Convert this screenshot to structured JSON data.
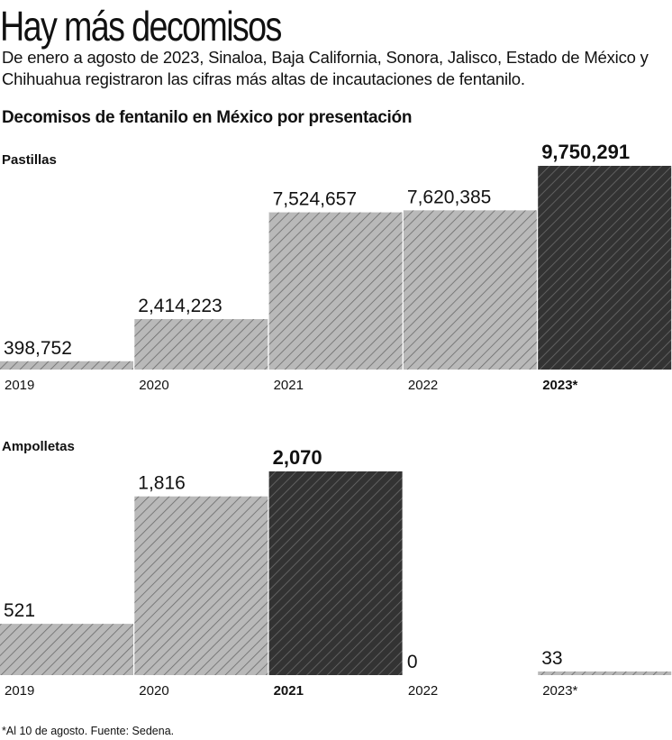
{
  "headline": "Hay más decomisos",
  "lede": "De enero a agosto de 2023, Sinaloa, Baja California, Sonora, Jalisco, Estado de México y Chihuahua registraron las cifras más altas de incautaciones de fentanilo.",
  "chart_title": "Decomisos de fentanilo en México por presentación",
  "footnote": "*Al 10 de agosto. Fuente: Sedena.",
  "colors": {
    "bar_fill": "#b9b9b9",
    "highlight_fill": "#333333",
    "hatch": "#6a6a6a"
  },
  "chart_data": [
    {
      "type": "bar",
      "title": "Pastillas",
      "categories": [
        "2019",
        "2020",
        "2021",
        "2022",
        "2023*"
      ],
      "values": [
        398752,
        2414223,
        7524657,
        7620385,
        9750291
      ],
      "value_labels": [
        "398,752",
        "2,414,223",
        "7,524,657",
        "7,620,385",
        "9,750,291"
      ],
      "highlight_index": 4,
      "ylim": [
        0,
        9750291
      ]
    },
    {
      "type": "bar",
      "title": "Ampolletas",
      "categories": [
        "2019",
        "2020",
        "2021",
        "2022",
        "2023*"
      ],
      "values": [
        521,
        1816,
        2070,
        0,
        33
      ],
      "value_labels": [
        "521",
        "1,816",
        "2,070",
        "0",
        "33"
      ],
      "highlight_index": 2,
      "ylim": [
        0,
        2070
      ]
    }
  ]
}
